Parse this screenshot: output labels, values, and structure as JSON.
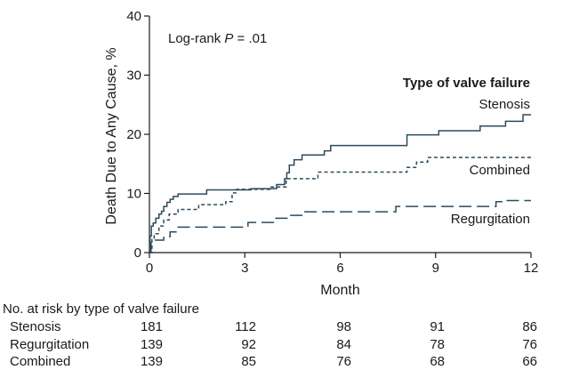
{
  "chart_data": {
    "type": "line",
    "step": true,
    "title": "",
    "xlabel": "Month",
    "ylabel": "Death Due to Any Cause, %",
    "xlim": [
      0,
      12
    ],
    "ylim": [
      0,
      40
    ],
    "xticks": [
      0,
      3,
      6,
      9,
      12
    ],
    "yticks": [
      0,
      10,
      20,
      30,
      40
    ],
    "grid": false,
    "annotation": "Log-rank P = .01",
    "annotation_prefix": "Log-rank ",
    "annotation_p": "P",
    "annotation_value": " = .01",
    "legend_title": "Type of valve failure",
    "colors": {
      "line": "#2e4a5c",
      "text": "#1a1a1a",
      "axis": "#1a1a1a"
    },
    "series": [
      {
        "name": "Stenosis",
        "dash": "solid",
        "points": [
          [
            0,
            0
          ],
          [
            0.02,
            2.8
          ],
          [
            0.06,
            4.5
          ],
          [
            0.12,
            5.0
          ],
          [
            0.2,
            5.8
          ],
          [
            0.3,
            6.5
          ],
          [
            0.38,
            7.0
          ],
          [
            0.45,
            7.8
          ],
          [
            0.55,
            8.5
          ],
          [
            0.65,
            9.0
          ],
          [
            0.75,
            9.5
          ],
          [
            0.9,
            9.9
          ],
          [
            1.8,
            10.6
          ],
          [
            3.2,
            10.8
          ],
          [
            4.0,
            11.5
          ],
          [
            4.25,
            12.5
          ],
          [
            4.32,
            13.5
          ],
          [
            4.4,
            14.8
          ],
          [
            4.55,
            15.7
          ],
          [
            4.8,
            16.5
          ],
          [
            5.5,
            17.2
          ],
          [
            5.7,
            18.1
          ],
          [
            8.1,
            19.9
          ],
          [
            9.1,
            20.6
          ],
          [
            10.4,
            21.4
          ],
          [
            11.2,
            22.2
          ],
          [
            11.75,
            23.3
          ],
          [
            12,
            23.3
          ]
        ]
      },
      {
        "name": "Combined",
        "dash": "short",
        "points": [
          [
            0,
            0
          ],
          [
            0.08,
            2.2
          ],
          [
            0.15,
            3.2
          ],
          [
            0.3,
            4.5
          ],
          [
            0.45,
            5.5
          ],
          [
            0.62,
            6.5
          ],
          [
            0.9,
            7.3
          ],
          [
            1.55,
            8.1
          ],
          [
            2.4,
            8.6
          ],
          [
            2.6,
            10.1
          ],
          [
            2.75,
            10.7
          ],
          [
            3.8,
            11.1
          ],
          [
            4.3,
            12.5
          ],
          [
            5.3,
            13.6
          ],
          [
            8.1,
            14.4
          ],
          [
            8.4,
            15.3
          ],
          [
            8.75,
            16.1
          ],
          [
            12,
            16.1
          ]
        ]
      },
      {
        "name": "Regurgitation",
        "dash": "long",
        "points": [
          [
            0,
            0
          ],
          [
            0.05,
            2.1
          ],
          [
            0.45,
            2.7
          ],
          [
            0.65,
            3.5
          ],
          [
            0.9,
            4.3
          ],
          [
            3.1,
            5.1
          ],
          [
            3.9,
            5.8
          ],
          [
            4.4,
            6.3
          ],
          [
            4.85,
            6.9
          ],
          [
            7.75,
            7.8
          ],
          [
            10.9,
            8.6
          ],
          [
            11.2,
            8.8
          ],
          [
            12,
            8.8
          ]
        ]
      }
    ],
    "risk_table": {
      "title": "No. at risk by type of valve failure",
      "times": [
        0,
        3,
        6,
        9,
        12
      ],
      "rows": [
        {
          "label": "Stenosis",
          "values": [
            "181",
            "112",
            "98",
            "91",
            "86"
          ]
        },
        {
          "label": "Regurgitation",
          "values": [
            "139",
            "92",
            "84",
            "78",
            "76"
          ]
        },
        {
          "label": "Combined",
          "values": [
            "139",
            "85",
            "76",
            "68",
            "66"
          ]
        }
      ]
    }
  }
}
